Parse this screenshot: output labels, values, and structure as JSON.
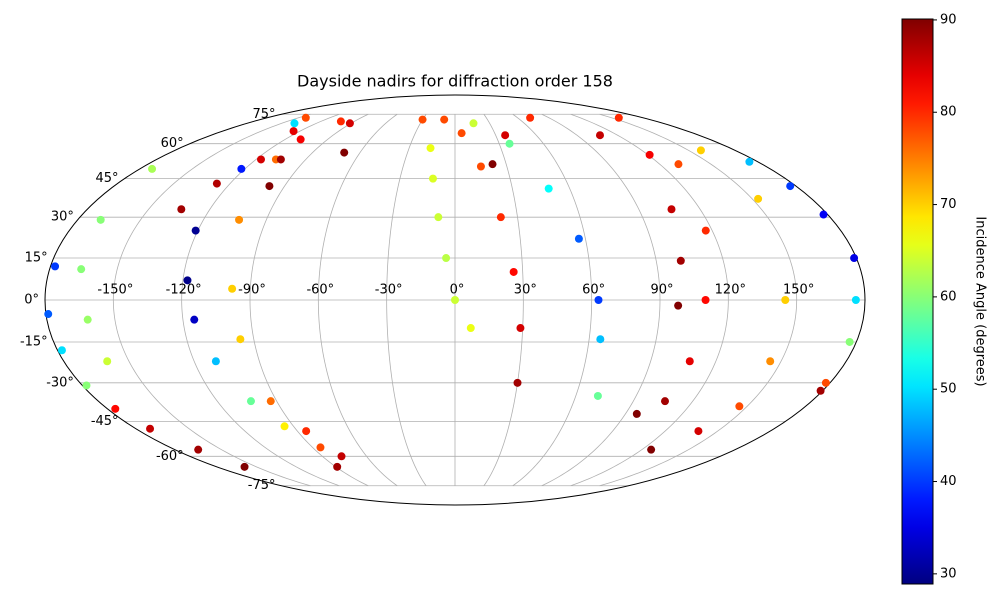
{
  "chart_data": {
    "type": "scatter",
    "projection": "mollweide",
    "title": "Dayside nadirs for diffraction order 158",
    "grid": true,
    "xlim": [
      -180,
      180
    ],
    "ylim": [
      -90,
      90
    ],
    "xticks": [
      {
        "value": -150,
        "label": "-150°"
      },
      {
        "value": -120,
        "label": "-120°"
      },
      {
        "value": -90,
        "label": "-90°"
      },
      {
        "value": -60,
        "label": "-60°"
      },
      {
        "value": -30,
        "label": "-30°"
      },
      {
        "value": 0,
        "label": "0°"
      },
      {
        "value": 30,
        "label": "30°"
      },
      {
        "value": 60,
        "label": "60°"
      },
      {
        "value": 90,
        "label": "90°"
      },
      {
        "value": 120,
        "label": "120°"
      },
      {
        "value": 150,
        "label": "150°"
      }
    ],
    "yticks": [
      {
        "value": -75,
        "label": "-75°"
      },
      {
        "value": -60,
        "label": "-60°"
      },
      {
        "value": -45,
        "label": "-45°"
      },
      {
        "value": -30,
        "label": "-30°"
      },
      {
        "value": -15,
        "label": "-15°"
      },
      {
        "value": 0,
        "label": "0°"
      },
      {
        "value": 15,
        "label": "15°"
      },
      {
        "value": 30,
        "label": "30°"
      },
      {
        "value": 45,
        "label": "45°"
      },
      {
        "value": 60,
        "label": "60°"
      },
      {
        "value": 75,
        "label": "75°"
      }
    ],
    "x": [
      -134,
      -127,
      -117,
      -109,
      -102,
      -139,
      -122,
      -121,
      -118,
      -115,
      -110,
      -103,
      -95,
      -85,
      -89,
      -178,
      -179,
      -178,
      -178,
      -176,
      -172,
      -165,
      -159,
      -173,
      -169,
      -166,
      -162,
      -160,
      -143,
      -108,
      -103,
      -98,
      -96,
      -93,
      -85,
      -77,
      -98,
      -105,
      -125,
      -70,
      -91,
      -16,
      -12,
      -8,
      -4,
      0,
      7,
      -30,
      -10,
      5,
      15,
      22,
      26,
      29,
      30,
      16,
      37,
      49,
      57,
      63,
      65,
      71,
      22,
      37,
      72,
      107,
      157,
      121,
      106,
      101,
      98,
      131,
      117,
      110,
      108,
      106,
      96,
      158,
      153,
      145,
      145,
      146,
      139,
      126,
      175,
      177,
      178,
      179,
      176,
      177,
      178,
      179
    ],
    "y": [
      33,
      43,
      53,
      62,
      71,
      70,
      49,
      25,
      7,
      -7,
      -22,
      -37,
      -47,
      -56,
      -65,
      12,
      -5,
      -18,
      -31,
      -40,
      -48,
      -57,
      -65,
      49,
      29,
      11,
      -7,
      -22,
      73,
      53,
      29,
      4,
      -14,
      -37,
      -49,
      -60,
      42,
      53,
      66,
      56,
      70,
      58,
      45,
      30,
      15,
      0,
      -10,
      72,
      72,
      65,
      50,
      30,
      10,
      -10,
      -30,
      70,
      60,
      41,
      22,
      0,
      -14,
      -35,
      51,
      64,
      73,
      64,
      73,
      55,
      33,
      14,
      -2,
      51,
      25,
      0,
      -22,
      -37,
      -42,
      57,
      37,
      0,
      -22,
      -39,
      -49,
      -57,
      52,
      42,
      31,
      15,
      0,
      -15,
      -30,
      -33
    ],
    "values": [
      88,
      87,
      85,
      83,
      80,
      50,
      38,
      30,
      29.5,
      33,
      48,
      58,
      68,
      78,
      88,
      40,
      42,
      50,
      60,
      82,
      86,
      88,
      90,
      62,
      60,
      60,
      61,
      64,
      78,
      76,
      74,
      70,
      70,
      76,
      80,
      86,
      90,
      88,
      84,
      90,
      85,
      66,
      65,
      64,
      63,
      64,
      66,
      78,
      78,
      78,
      78,
      80,
      82,
      85,
      88,
      64,
      58,
      52,
      42,
      40,
      48,
      58,
      90,
      85,
      80,
      86,
      80,
      83,
      86,
      88,
      90,
      78,
      80,
      82,
      84,
      88,
      90,
      70,
      70,
      70,
      74,
      78,
      85,
      90,
      48,
      40,
      36,
      35,
      50,
      60,
      78,
      88
    ],
    "colorbar": {
      "label": "Incidence Angle (degrees)",
      "cmap": "jet",
      "lim": [
        28.9,
        90.1
      ],
      "ticks": [
        30,
        40,
        50,
        60,
        70,
        80,
        90
      ]
    }
  }
}
